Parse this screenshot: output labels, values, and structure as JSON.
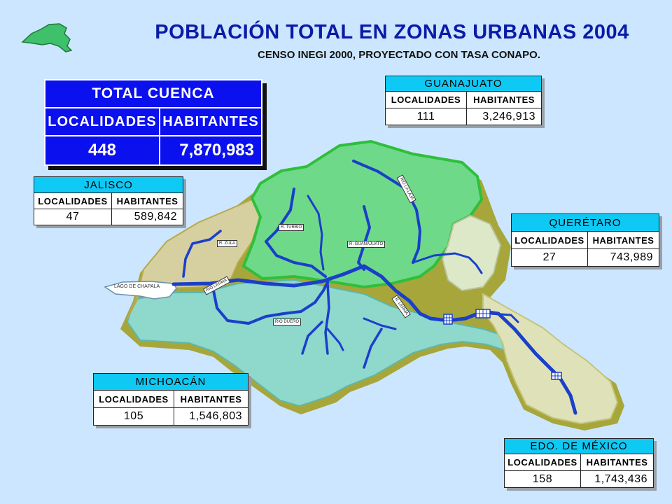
{
  "header": {
    "title": "POBLACIÓN TOTAL EN ZONAS URBANAS 2004",
    "subtitle": "CENSO INEGI 2000, PROYECTADO CON TASA CONAPO."
  },
  "total": {
    "title": "TOTAL CUENCA",
    "col1": "LOCALIDADES",
    "col2": "HABITANTES",
    "localidades": "448",
    "habitantes": "7,870,983"
  },
  "states": {
    "guanajuato": {
      "name": "GUANAJUATO",
      "col1": "LOCALIDADES",
      "col2": "HABITANTES",
      "localidades": "111",
      "habitantes": "3,246,913"
    },
    "jalisco": {
      "name": "JALISCO",
      "col1": "LOCALIDADES",
      "col2": "HABITANTES",
      "localidades": "47",
      "habitantes": "589,842"
    },
    "queretaro": {
      "name": "QUERÉTARO",
      "col1": "LOCALIDADES",
      "col2": "HABITANTES",
      "localidades": "27",
      "habitantes": "743,989"
    },
    "michoacan": {
      "name": "MICHOACÁN",
      "col1": "LOCALIDADES",
      "col2": "HABITANTES",
      "localidades": "105",
      "habitantes": "1,546,803"
    },
    "mexico": {
      "name": "EDO. DE MÉXICO",
      "col1": "LOCALIDADES",
      "col2": "HABITANTES",
      "localidades": "158",
      "habitantes": "1,743,436"
    }
  },
  "map_labels": {
    "lake": "LAGO DE CHAPALA",
    "r_zula": "R. ZULA",
    "r_turbio": "R. TURBIO",
    "r_guanajuato": "R. GUANAJUATO",
    "r_laja": "RIO LA LAJA",
    "r_lerma_w": "RIO LERMA",
    "r_lerma_e": "R. LERMA",
    "r_duero": "RIO DUERO"
  },
  "colors": {
    "background": "#cce6ff",
    "title": "#0a1aa8",
    "table_header": "#0fc9f5",
    "total_box": "#0a10ee",
    "guanajuato_region": "#6fd98a",
    "michoacan_region": "#8fd8cc",
    "jalisco_region": "#d6cfa0",
    "queretaro_region": "#dde8c8",
    "mexico_region": "#dfe2b8",
    "river": "#1a3fc9"
  },
  "icons": {
    "logo": "basin-silhouette-icon",
    "city": "city-grid-icon"
  }
}
